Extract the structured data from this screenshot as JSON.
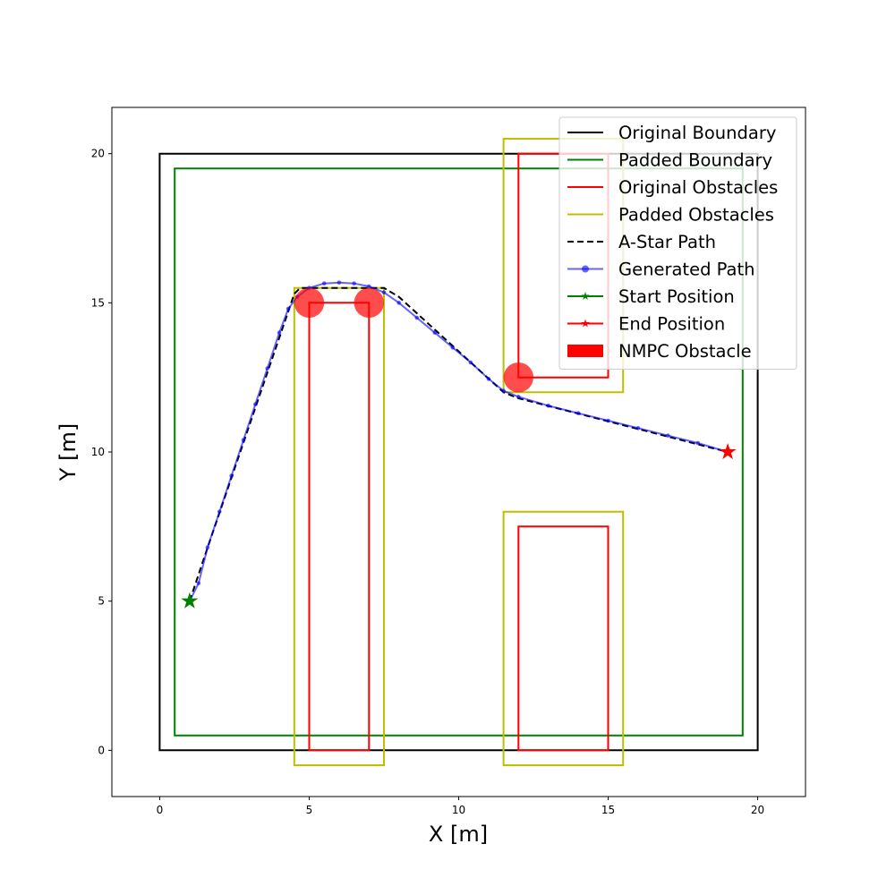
{
  "chart_data": {
    "type": "line",
    "xlabel": "X [m]",
    "ylabel": "Y [m]",
    "xlim": [
      -1.6,
      21.6
    ],
    "ylim": [
      -1.55,
      21.55
    ],
    "xticks": [
      0,
      5,
      10,
      15,
      20
    ],
    "yticks": [
      0,
      5,
      10,
      15,
      20
    ],
    "grid": false,
    "legend_placement": "top-right",
    "legend": [
      {
        "key": "original_boundary",
        "label": "Original Boundary",
        "color": "#000000",
        "style": "solid"
      },
      {
        "key": "padded_boundary",
        "label": "Padded Boundary",
        "color": "#008000",
        "style": "solid"
      },
      {
        "key": "original_obstacles",
        "label": "Original Obstacles",
        "color": "#ff0000",
        "style": "solid"
      },
      {
        "key": "padded_obstacles",
        "label": "Padded Obstacles",
        "color": "#bfbf00",
        "style": "solid"
      },
      {
        "key": "astar_path",
        "label": "A-Star Path",
        "color": "#000000",
        "style": "dashed"
      },
      {
        "key": "generated_path",
        "label": "Generated Path",
        "color": "#0000ff",
        "style": "line-marker"
      },
      {
        "key": "start_position",
        "label": "Start Position",
        "color": "#008000",
        "style": "star"
      },
      {
        "key": "end_position",
        "label": "End Position",
        "color": "#ff0000",
        "style": "star"
      },
      {
        "key": "nmpc_obstacle",
        "label": "NMPC Obstacle",
        "color": "#ff0000",
        "style": "patch"
      }
    ],
    "original_boundary": [
      [
        0,
        0
      ],
      [
        20,
        0
      ],
      [
        20,
        20
      ],
      [
        0,
        20
      ]
    ],
    "padded_boundary": [
      [
        0.5,
        0.5
      ],
      [
        19.5,
        0.5
      ],
      [
        19.5,
        19.5
      ],
      [
        0.5,
        19.5
      ]
    ],
    "original_obstacles": [
      [
        [
          5,
          0
        ],
        [
          7,
          0
        ],
        [
          7,
          15
        ],
        [
          5,
          15
        ]
      ],
      [
        [
          12,
          12.5
        ],
        [
          15,
          12.5
        ],
        [
          15,
          20
        ],
        [
          12,
          20
        ]
      ],
      [
        [
          12,
          0
        ],
        [
          15,
          0
        ],
        [
          15,
          7.5
        ],
        [
          12,
          7.5
        ]
      ]
    ],
    "padded_obstacles": [
      [
        [
          4.5,
          -0.5
        ],
        [
          7.5,
          -0.5
        ],
        [
          7.5,
          15.5
        ],
        [
          4.5,
          15.5
        ]
      ],
      [
        [
          11.5,
          12
        ],
        [
          15.5,
          12
        ],
        [
          15.5,
          20.5
        ],
        [
          11.5,
          20.5
        ]
      ],
      [
        [
          11.5,
          -0.5
        ],
        [
          15.5,
          -0.5
        ],
        [
          15.5,
          8
        ],
        [
          11.5,
          8
        ]
      ]
    ],
    "astar_path": [
      [
        1,
        5
      ],
      [
        1.5,
        6.5
      ],
      [
        4.5,
        15.3
      ],
      [
        4.7,
        15.5
      ],
      [
        7.5,
        15.5
      ],
      [
        8,
        15.2
      ],
      [
        11.5,
        12
      ],
      [
        12,
        11.8
      ],
      [
        19,
        10
      ]
    ],
    "generated_path": [
      [
        1,
        5
      ],
      [
        1.3,
        5.6
      ],
      [
        1.6,
        6.8
      ],
      [
        2.0,
        8.0
      ],
      [
        2.4,
        9.2
      ],
      [
        2.8,
        10.4
      ],
      [
        3.2,
        11.6
      ],
      [
        3.6,
        12.8
      ],
      [
        4.0,
        14.0
      ],
      [
        4.3,
        14.8
      ],
      [
        4.6,
        15.2
      ],
      [
        5.0,
        15.5
      ],
      [
        5.5,
        15.65
      ],
      [
        6.0,
        15.68
      ],
      [
        6.5,
        15.65
      ],
      [
        7.0,
        15.55
      ],
      [
        7.5,
        15.35
      ],
      [
        8.0,
        15.0
      ],
      [
        8.6,
        14.5
      ],
      [
        9.2,
        14.0
      ],
      [
        9.8,
        13.5
      ],
      [
        10.4,
        13.0
      ],
      [
        11.0,
        12.45
      ],
      [
        11.5,
        12.05
      ],
      [
        12.0,
        11.85
      ],
      [
        13.0,
        11.55
      ],
      [
        14.0,
        11.3
      ],
      [
        15.0,
        11.05
      ],
      [
        16.0,
        10.8
      ],
      [
        17.0,
        10.55
      ],
      [
        18.0,
        10.3
      ],
      [
        19.0,
        10.0
      ]
    ],
    "start_position": [
      1,
      5
    ],
    "end_position": [
      19,
      10
    ],
    "nmpc_obstacles": [
      {
        "center": [
          5,
          15
        ],
        "radius": 0.5
      },
      {
        "center": [
          7,
          15
        ],
        "radius": 0.5
      },
      {
        "center": [
          12,
          12.5
        ],
        "radius": 0.5
      }
    ]
  }
}
